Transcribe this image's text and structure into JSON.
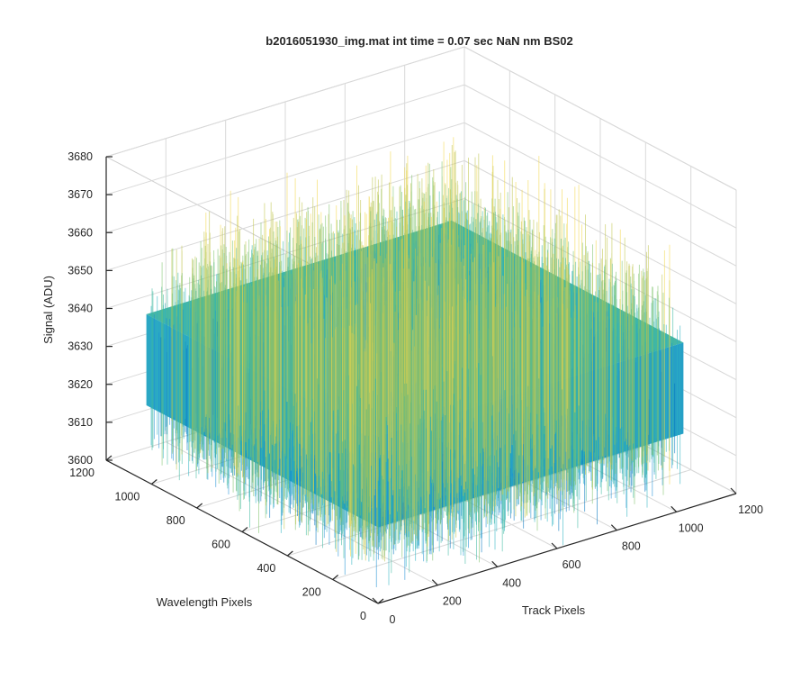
{
  "chart_data": {
    "type": "surface",
    "title": "b2016051930_img.mat int time = 0.07 sec  NaN nm BS02",
    "xlabel": "Track Pixels",
    "ylabel": "Wavelength Pixels",
    "zlabel": "Signal (ADU)",
    "xlim": [
      0,
      1200
    ],
    "ylim": [
      0,
      1200
    ],
    "zlim": [
      3600,
      3680
    ],
    "x_ticks": [
      "0",
      "200",
      "400",
      "600",
      "800",
      "1000",
      "1200"
    ],
    "y_ticks": [
      "0",
      "200",
      "400",
      "600",
      "800",
      "1000",
      "1200"
    ],
    "z_ticks": [
      "3600",
      "3610",
      "3620",
      "3630",
      "3640",
      "3650",
      "3660",
      "3670",
      "3680"
    ],
    "grid": true,
    "data_extent": {
      "x": [
        1,
        1024
      ],
      "y": [
        1,
        1024
      ]
    },
    "signal_mean": 3632,
    "signal_range_approx": [
      3597,
      3668
    ],
    "colormap": [
      "#0072BD",
      "#1E90D6",
      "#2BB3C1",
      "#3CB8A0",
      "#7EC26C",
      "#BFC54B",
      "#F2D74A"
    ]
  }
}
